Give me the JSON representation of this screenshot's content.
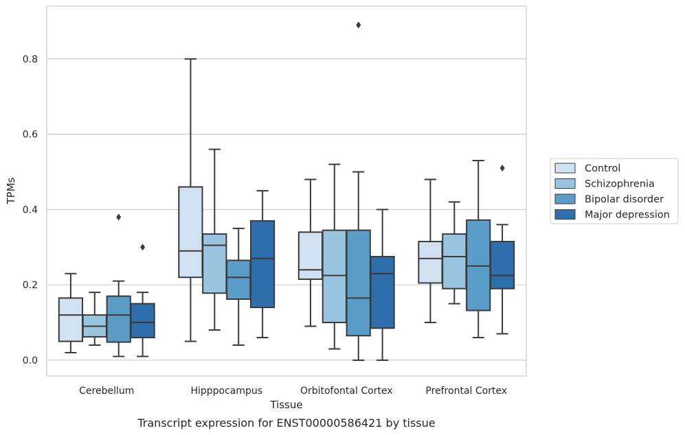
{
  "caption": "Transcript expression for ENST00000586421 by tissue",
  "chart_data": {
    "type": "box",
    "xlabel": "Tissue",
    "ylabel": "TPMs",
    "ylim": [
      -0.042,
      0.94
    ],
    "yticks": [
      "0.0",
      "0.2",
      "0.4",
      "0.6",
      "0.8"
    ],
    "grid": "horizontal",
    "legend_placement": "right-outside",
    "categories": [
      "Cerebellum",
      "Hipppocampus",
      "Orbitofontal Cortex",
      "Prefrontal Cortex"
    ],
    "series": [
      {
        "name": "Control",
        "color": "#d0e2f2",
        "boxes": [
          {
            "whisker_low": 0.02,
            "q1": 0.05,
            "median": 0.12,
            "q3": 0.165,
            "whisker_high": 0.23,
            "outliers": []
          },
          {
            "whisker_low": 0.05,
            "q1": 0.22,
            "median": 0.29,
            "q3": 0.46,
            "whisker_high": 0.8,
            "outliers": []
          },
          {
            "whisker_low": 0.09,
            "q1": 0.215,
            "median": 0.24,
            "q3": 0.34,
            "whisker_high": 0.48,
            "outliers": []
          },
          {
            "whisker_low": 0.1,
            "q1": 0.205,
            "median": 0.27,
            "q3": 0.315,
            "whisker_high": 0.48,
            "outliers": []
          }
        ]
      },
      {
        "name": "Schizophrenia",
        "color": "#9ac5e0",
        "boxes": [
          {
            "whisker_low": 0.04,
            "q1": 0.062,
            "median": 0.09,
            "q3": 0.12,
            "whisker_high": 0.18,
            "outliers": []
          },
          {
            "whisker_low": 0.08,
            "q1": 0.178,
            "median": 0.305,
            "q3": 0.335,
            "whisker_high": 0.56,
            "outliers": []
          },
          {
            "whisker_low": 0.03,
            "q1": 0.1,
            "median": 0.225,
            "q3": 0.345,
            "whisker_high": 0.52,
            "outliers": []
          },
          {
            "whisker_low": 0.15,
            "q1": 0.19,
            "median": 0.275,
            "q3": 0.335,
            "whisker_high": 0.42,
            "outliers": []
          }
        ]
      },
      {
        "name": "Bipolar disorder",
        "color": "#5a9dc8",
        "boxes": [
          {
            "whisker_low": 0.01,
            "q1": 0.048,
            "median": 0.12,
            "q3": 0.17,
            "whisker_high": 0.21,
            "outliers": [
              0.38
            ]
          },
          {
            "whisker_low": 0.04,
            "q1": 0.162,
            "median": 0.22,
            "q3": 0.265,
            "whisker_high": 0.35,
            "outliers": []
          },
          {
            "whisker_low": 0.0,
            "q1": 0.065,
            "median": 0.165,
            "q3": 0.345,
            "whisker_high": 0.5,
            "outliers": [
              0.89
            ]
          },
          {
            "whisker_low": 0.06,
            "q1": 0.132,
            "median": 0.25,
            "q3": 0.372,
            "whisker_high": 0.53,
            "outliers": []
          }
        ]
      },
      {
        "name": "Major depression",
        "color": "#2f6ead",
        "boxes": [
          {
            "whisker_low": 0.01,
            "q1": 0.06,
            "median": 0.1,
            "q3": 0.15,
            "whisker_high": 0.18,
            "outliers": [
              0.3
            ]
          },
          {
            "whisker_low": 0.06,
            "q1": 0.14,
            "median": 0.27,
            "q3": 0.37,
            "whisker_high": 0.45,
            "outliers": []
          },
          {
            "whisker_low": 0.0,
            "q1": 0.085,
            "median": 0.23,
            "q3": 0.275,
            "whisker_high": 0.4,
            "outliers": []
          },
          {
            "whisker_low": 0.07,
            "q1": 0.19,
            "median": 0.225,
            "q3": 0.315,
            "whisker_high": 0.36,
            "outliers": [
              0.51
            ]
          }
        ]
      }
    ]
  }
}
